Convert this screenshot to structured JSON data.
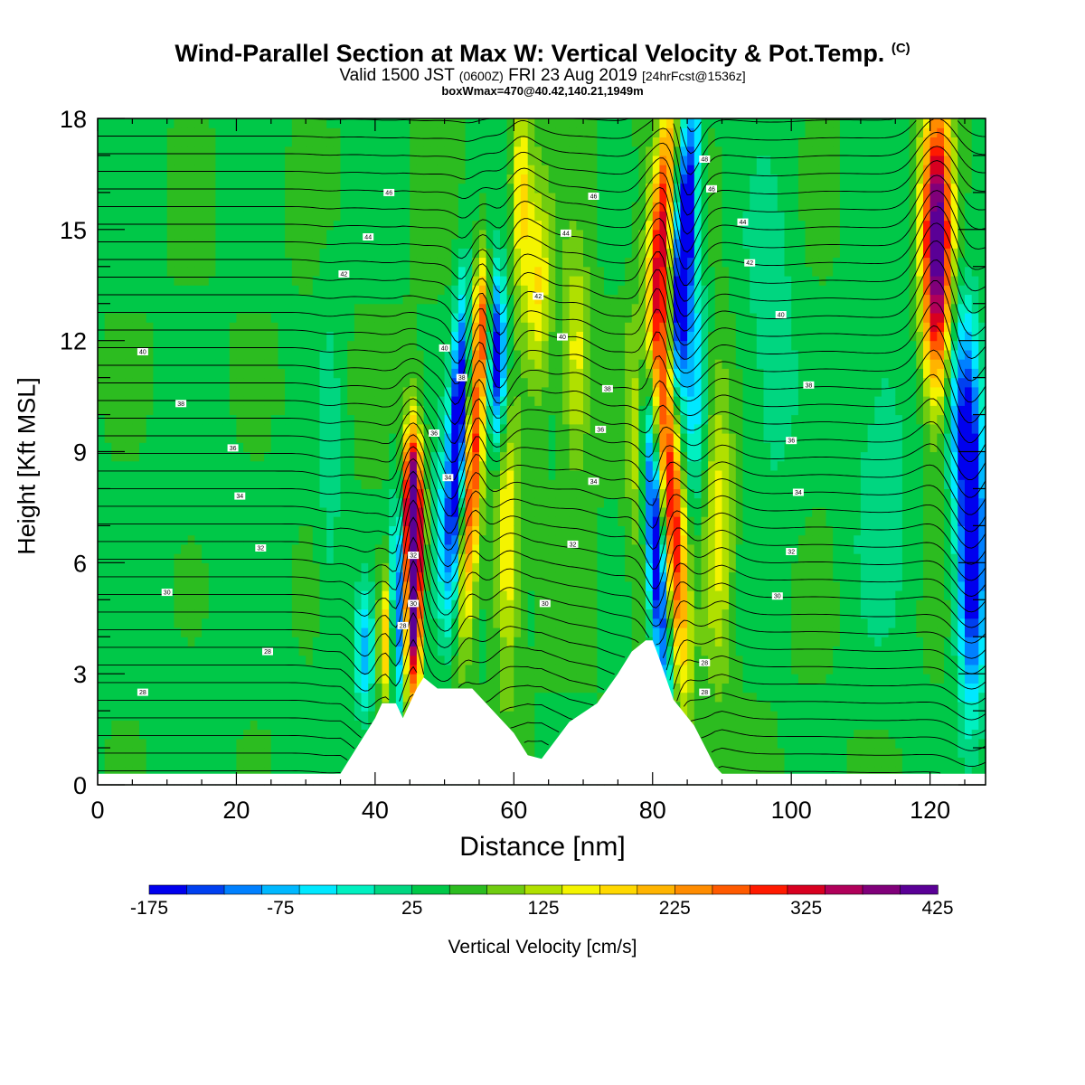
{
  "header": {
    "title": "Wind-Parallel Section at Max W: Vertical Velocity & Pot.Temp.",
    "copyright": "(C)",
    "valid_prefix": "Valid 1500 JST",
    "valid_utc": "(0600Z)",
    "valid_date": "FRI 23 Aug 2019",
    "forecast": "[24hrFcst@1536z]",
    "box_info": "boxWmax=470@40.42,140.21,1949m"
  },
  "colors": {
    "fill_palette": [
      "#0000ee",
      "#0040f0",
      "#0080ff",
      "#00b8ff",
      "#00e8ff",
      "#00f0c0",
      "#00d680",
      "#00c848",
      "#2cbc20",
      "#70cc10",
      "#b0e000",
      "#f4f400",
      "#ffd800",
      "#ffb400",
      "#ff8c00",
      "#ff5a00",
      "#ff1a00",
      "#d80020",
      "#b0005a",
      "#80007a",
      "#5a0096"
    ]
  },
  "chart_data": {
    "type": "heatmap",
    "title": "Wind-Parallel Section at Max W: Vertical Velocity & Pot.Temp.",
    "xlabel": "Distance [nm]",
    "ylabel": "Height [Kft MSL]",
    "xlim": [
      0,
      128
    ],
    "ylim": [
      0,
      18
    ],
    "x_ticks": [
      0,
      20,
      40,
      60,
      80,
      100,
      120
    ],
    "y_ticks": [
      0,
      3,
      6,
      9,
      12,
      15,
      18
    ],
    "colorbar": {
      "label": "Vertical Velocity [cm/s]",
      "ticks": [
        -175,
        -75,
        25,
        125,
        225,
        325,
        425
      ],
      "min": -175,
      "max": 425,
      "step": 25
    },
    "terrain_kft": {
      "x": [
        0,
        35,
        36,
        38,
        40,
        41,
        43,
        44,
        46,
        47,
        49,
        54,
        57,
        60,
        62,
        64,
        66,
        68,
        72,
        75,
        77,
        79,
        80,
        81,
        83,
        86,
        89,
        90,
        128
      ],
      "y": [
        0.3,
        0.3,
        0.6,
        1.2,
        1.8,
        2.2,
        2.2,
        1.8,
        2.6,
        2.9,
        2.6,
        2.6,
        2.0,
        1.4,
        0.8,
        0.7,
        1.2,
        1.7,
        2.2,
        3.0,
        3.6,
        3.9,
        3.9,
        3.4,
        2.3,
        1.6,
        0.5,
        0.3,
        0.3
      ]
    },
    "w_features": [
      {
        "x": 45.5,
        "z": 5.5,
        "sx": 1.0,
        "sz": 2.2,
        "w": 420,
        "tilt": 0.0
      },
      {
        "x": 45.3,
        "z": 8.0,
        "sx": 0.9,
        "sz": 1.2,
        "w": 170,
        "tilt": 0.0
      },
      {
        "x": 43.5,
        "z": 5.0,
        "sx": 0.8,
        "sz": 2.0,
        "w": -200,
        "tilt": 0.0
      },
      {
        "x": 47.0,
        "z": 4.5,
        "sx": 0.8,
        "sz": 1.5,
        "w": -80,
        "tilt": 0.0
      },
      {
        "x": 41.5,
        "z": 4.0,
        "sx": 0.8,
        "sz": 1.3,
        "w": 140,
        "tilt": 0.0
      },
      {
        "x": 38.5,
        "z": 3.5,
        "sx": 1.0,
        "sz": 1.2,
        "w": -110,
        "tilt": 0.0
      },
      {
        "x": 52.0,
        "z": 9.5,
        "sx": 0.9,
        "sz": 2.6,
        "w": -240,
        "tilt": 0.2
      },
      {
        "x": 54.0,
        "z": 8.5,
        "sx": 1.0,
        "sz": 2.8,
        "w": 220,
        "tilt": 0.25
      },
      {
        "x": 55.5,
        "z": 12.5,
        "sx": 0.8,
        "sz": 1.2,
        "w": 150,
        "tilt": 0.0
      },
      {
        "x": 57.5,
        "z": 11.5,
        "sx": 1.0,
        "sz": 1.6,
        "w": -220,
        "tilt": 0.0
      },
      {
        "x": 59.0,
        "z": 6.5,
        "sx": 1.2,
        "sz": 2.5,
        "w": 110,
        "tilt": 0.0
      },
      {
        "x": 50.0,
        "z": 6.5,
        "sx": 1.2,
        "sz": 2.0,
        "w": -90,
        "tilt": 0.0
      },
      {
        "x": 63.5,
        "z": 13.5,
        "sx": 1.3,
        "sz": 2.0,
        "w": 100,
        "tilt": 0.0
      },
      {
        "x": 69.0,
        "z": 11.5,
        "sx": 1.4,
        "sz": 2.0,
        "w": 90,
        "tilt": 0.0
      },
      {
        "x": 61.0,
        "z": 16.0,
        "sx": 1.0,
        "sz": 2.0,
        "w": 110,
        "tilt": 0.0
      },
      {
        "x": 80.5,
        "z": 6.5,
        "sx": 1.0,
        "sz": 3.2,
        "w": -230,
        "tilt": -0.35
      },
      {
        "x": 82.5,
        "z": 8.5,
        "sx": 1.2,
        "sz": 4.0,
        "w": 250,
        "tilt": -0.3
      },
      {
        "x": 84.5,
        "z": 14.5,
        "sx": 1.0,
        "sz": 2.8,
        "w": -260,
        "tilt": 0.3
      },
      {
        "x": 81.5,
        "z": 15.5,
        "sx": 1.0,
        "sz": 2.5,
        "w": 190,
        "tilt": 0.3
      },
      {
        "x": 86.0,
        "z": 11.0,
        "sx": 1.3,
        "sz": 2.5,
        "w": -90,
        "tilt": 0.0
      },
      {
        "x": 78.0,
        "z": 10.0,
        "sx": 1.2,
        "sz": 3.0,
        "w": 80,
        "tilt": 0.0
      },
      {
        "x": 89.5,
        "z": 7.0,
        "sx": 1.5,
        "sz": 3.0,
        "w": 90,
        "tilt": 0.0
      },
      {
        "x": 121.0,
        "z": 13.5,
        "sx": 1.5,
        "sz": 2.3,
        "w": 260,
        "tilt": 0.0
      },
      {
        "x": 121.0,
        "z": 16.5,
        "sx": 1.5,
        "sz": 2.0,
        "w": 150,
        "tilt": 0.0
      },
      {
        "x": 126.0,
        "z": 6.5,
        "sx": 1.4,
        "sz": 3.0,
        "w": -230,
        "tilt": 0.0
      },
      {
        "x": 124.5,
        "z": 10.5,
        "sx": 1.5,
        "sz": 2.0,
        "w": -120,
        "tilt": 0.0
      },
      {
        "x": 113.0,
        "z": 9.0,
        "sx": 3.5,
        "sz": 4.0,
        "w": -40,
        "tilt": 0.0
      },
      {
        "x": 33.5,
        "z": 8.0,
        "sx": 1.2,
        "sz": 4.0,
        "w": -35,
        "tilt": 0.0
      },
      {
        "x": 97.0,
        "z": 12.0,
        "sx": 3.0,
        "sz": 4.0,
        "w": -40,
        "tilt": 0.0
      }
    ],
    "theta_isentropes": {
      "min": 27.5,
      "max": 47.5,
      "step": 0.5
    },
    "theta_labels": [
      {
        "x": 6.5,
        "z": 2.5,
        "text": "28"
      },
      {
        "x": 24.5,
        "z": 3.6,
        "text": "28"
      },
      {
        "x": 10.0,
        "z": 5.2,
        "text": "30"
      },
      {
        "x": 23.5,
        "z": 6.4,
        "text": "32"
      },
      {
        "x": 20.5,
        "z": 7.8,
        "text": "34"
      },
      {
        "x": 19.5,
        "z": 9.1,
        "text": "36"
      },
      {
        "x": 12.0,
        "z": 10.3,
        "text": "38"
      },
      {
        "x": 6.5,
        "z": 11.7,
        "text": "40"
      },
      {
        "x": 35.5,
        "z": 13.8,
        "text": "42"
      },
      {
        "x": 39.0,
        "z": 14.8,
        "text": "44"
      },
      {
        "x": 42.0,
        "z": 16.0,
        "text": "46"
      },
      {
        "x": 44.0,
        "z": 4.3,
        "text": "28"
      },
      {
        "x": 45.5,
        "z": 4.9,
        "text": "30"
      },
      {
        "x": 45.5,
        "z": 6.2,
        "text": "32"
      },
      {
        "x": 50.5,
        "z": 8.3,
        "text": "34"
      },
      {
        "x": 48.5,
        "z": 9.5,
        "text": "36"
      },
      {
        "x": 52.5,
        "z": 11.0,
        "text": "38"
      },
      {
        "x": 50.0,
        "z": 11.8,
        "text": "40"
      },
      {
        "x": 63.5,
        "z": 13.2,
        "text": "42"
      },
      {
        "x": 67.5,
        "z": 14.9,
        "text": "44"
      },
      {
        "x": 71.5,
        "z": 15.9,
        "text": "46"
      },
      {
        "x": 64.5,
        "z": 4.9,
        "text": "30"
      },
      {
        "x": 68.5,
        "z": 6.5,
        "text": "32"
      },
      {
        "x": 71.5,
        "z": 8.2,
        "text": "34"
      },
      {
        "x": 72.5,
        "z": 9.6,
        "text": "36"
      },
      {
        "x": 73.5,
        "z": 10.7,
        "text": "38"
      },
      {
        "x": 67.0,
        "z": 12.1,
        "text": "40"
      },
      {
        "x": 87.5,
        "z": 2.5,
        "text": "28"
      },
      {
        "x": 87.5,
        "z": 3.3,
        "text": "28"
      },
      {
        "x": 98.0,
        "z": 5.1,
        "text": "30"
      },
      {
        "x": 100.0,
        "z": 6.3,
        "text": "32"
      },
      {
        "x": 101.0,
        "z": 7.9,
        "text": "34"
      },
      {
        "x": 100.0,
        "z": 9.3,
        "text": "36"
      },
      {
        "x": 102.5,
        "z": 10.8,
        "text": "38"
      },
      {
        "x": 98.5,
        "z": 12.7,
        "text": "40"
      },
      {
        "x": 94.0,
        "z": 14.1,
        "text": "42"
      },
      {
        "x": 93.0,
        "z": 15.2,
        "text": "44"
      },
      {
        "x": 88.5,
        "z": 16.1,
        "text": "46"
      },
      {
        "x": 87.5,
        "z": 16.9,
        "text": "48"
      }
    ]
  }
}
